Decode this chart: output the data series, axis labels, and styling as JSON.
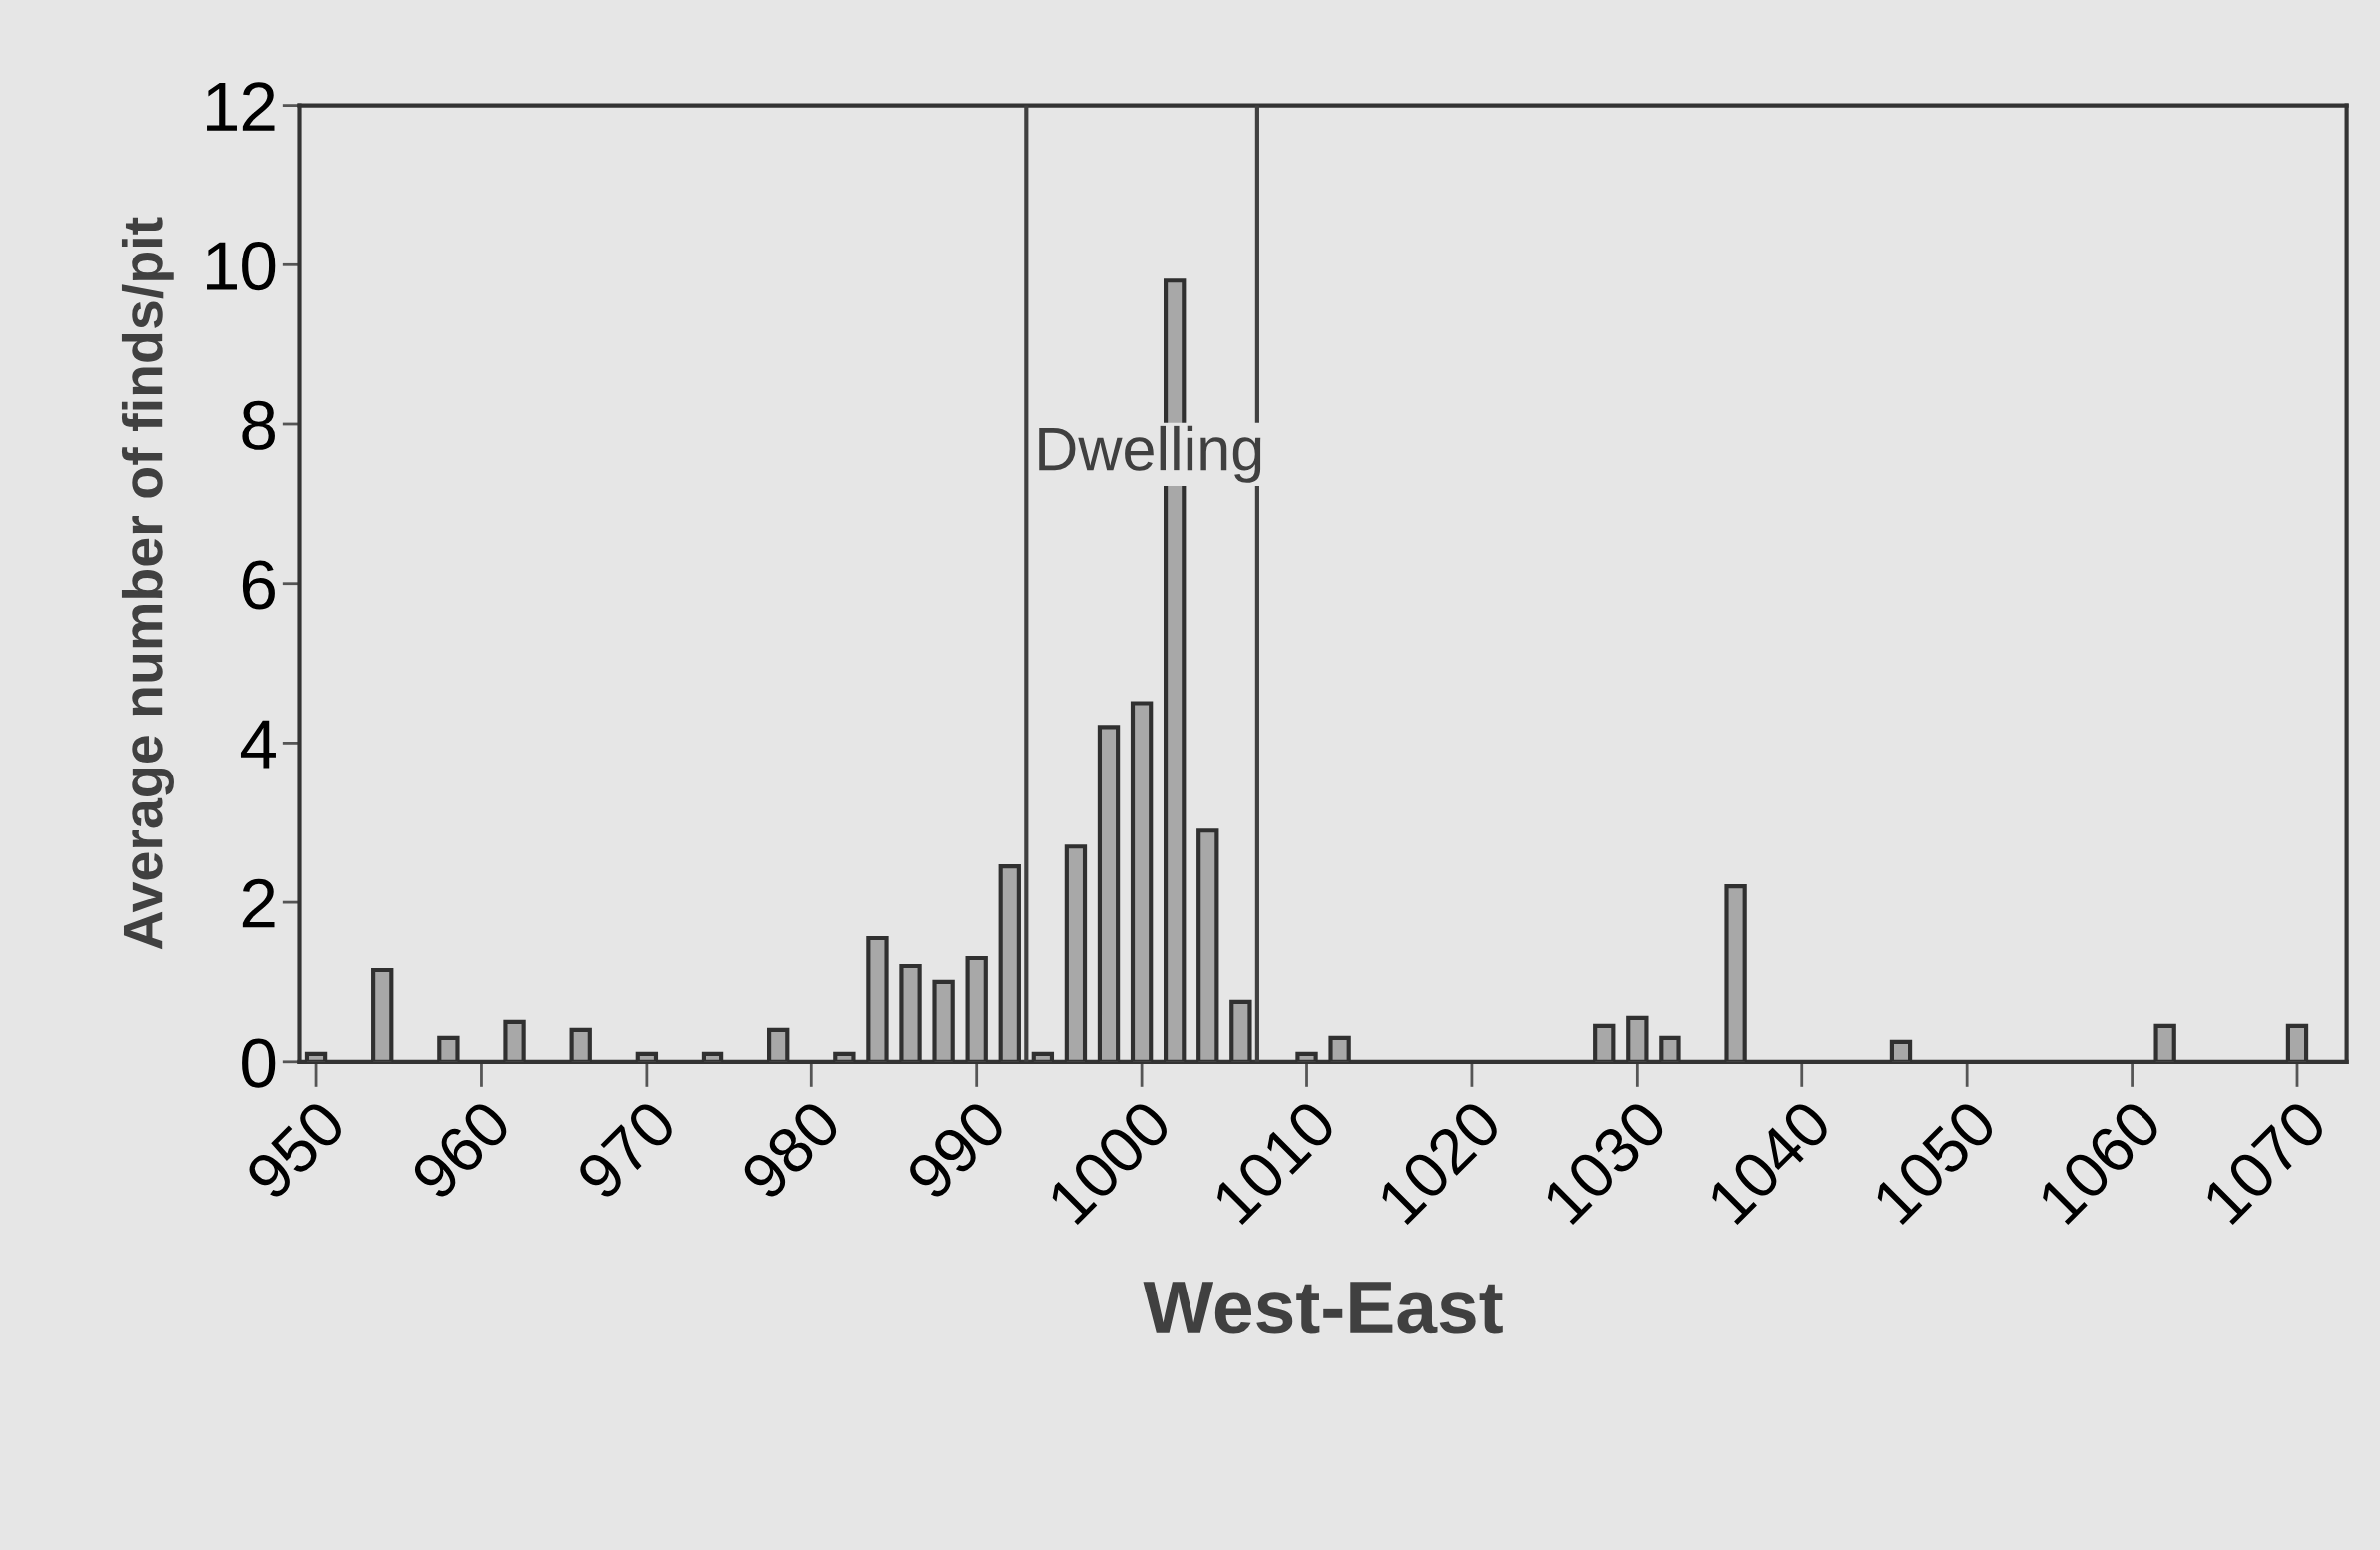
{
  "chart_data": {
    "type": "bar",
    "xlabel": "West-East",
    "ylabel": "Average number of finds/pit",
    "x": [
      950,
      954,
      958,
      962,
      966,
      970,
      974,
      978,
      982,
      984,
      986,
      988,
      990,
      992,
      994,
      996,
      998,
      1000,
      1002,
      1004,
      1006,
      1010,
      1012,
      1028,
      1030,
      1032,
      1036,
      1046,
      1062,
      1070
    ],
    "values": [
      0.1,
      1.15,
      0.3,
      0.5,
      0.4,
      0.1,
      0.1,
      0.4,
      0.1,
      1.55,
      1.2,
      1.0,
      1.3,
      2.45,
      0.1,
      2.7,
      4.2,
      4.5,
      9.8,
      2.9,
      0.75,
      0.1,
      0.3,
      0.45,
      0.55,
      0.3,
      2.2,
      0.25,
      0.45,
      0.45
    ],
    "color": "#a8a8a8",
    "xlim": [
      949,
      1073
    ],
    "ylim": [
      0,
      12
    ],
    "xticks": [
      950,
      960,
      970,
      980,
      990,
      1000,
      1010,
      1020,
      1030,
      1040,
      1050,
      1060,
      1070
    ],
    "yticks": [
      0,
      2,
      4,
      6,
      8,
      10,
      12
    ],
    "ref_lines": [
      {
        "axis": "x",
        "value": 993,
        "color": "#404040"
      },
      {
        "axis": "x",
        "value": 1007,
        "color": "#404040"
      }
    ],
    "annotations": [
      "Dwelling"
    ],
    "grid": false,
    "legend": false
  }
}
